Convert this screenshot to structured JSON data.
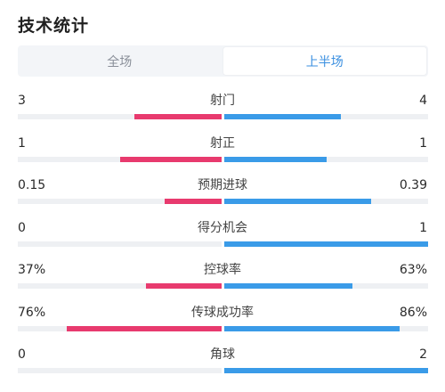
{
  "title": "技术统计",
  "tabs": [
    {
      "label": "全场",
      "active": false
    },
    {
      "label": "上半场",
      "active": true
    }
  ],
  "colors": {
    "home": "#e83a6e",
    "away": "#3a9be8",
    "accent": "#3a8fe0"
  },
  "stats": [
    {
      "name": "射门",
      "left": "3",
      "right": "4",
      "left_share": 0.43,
      "right_share": 0.57
    },
    {
      "name": "射正",
      "left": "1",
      "right": "1",
      "left_share": 0.5,
      "right_share": 0.5
    },
    {
      "name": "预期进球",
      "left": "0.15",
      "right": "0.39",
      "left_share": 0.28,
      "right_share": 0.72
    },
    {
      "name": "得分机会",
      "left": "0",
      "right": "1",
      "left_share": 0,
      "right_share": 1
    },
    {
      "name": "控球率",
      "left": "37%",
      "right": "63%",
      "left_share": 0.37,
      "right_share": 0.63
    },
    {
      "name": "传球成功率",
      "left": "76%",
      "right": "86%",
      "left_share": 0.76,
      "right_share": 0.86
    },
    {
      "name": "角球",
      "left": "0",
      "right": "2",
      "left_share": 0,
      "right_share": 1
    }
  ]
}
